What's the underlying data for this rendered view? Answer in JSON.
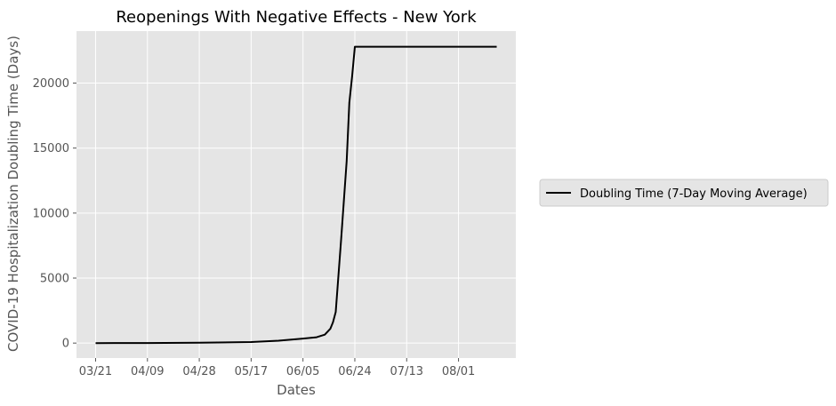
{
  "chart_data": {
    "type": "line",
    "title": "Reopenings With Negative Effects - New York",
    "xlabel": "Dates",
    "ylabel": "COVID-19 Hospitalization Doubling Time (Days)",
    "x_tick_labels": [
      "03/21",
      "04/09",
      "04/28",
      "05/17",
      "06/05",
      "06/24",
      "07/13",
      "08/01"
    ],
    "y_ticks": [
      0,
      5000,
      10000,
      15000,
      20000
    ],
    "ylim": [
      -1150,
      24000
    ],
    "xlim": [
      "2020-03-14",
      "2020-08-22"
    ],
    "grid": true,
    "legend_position": "outside-right",
    "series": [
      {
        "name": "Doubling Time (7-Day Moving Average)",
        "color": "#000000",
        "points": [
          {
            "x": "2020-03-21",
            "y": 0
          },
          {
            "x": "2020-04-09",
            "y": 5
          },
          {
            "x": "2020-04-28",
            "y": 25
          },
          {
            "x": "2020-05-17",
            "y": 80
          },
          {
            "x": "2020-05-27",
            "y": 180
          },
          {
            "x": "2020-06-05",
            "y": 350
          },
          {
            "x": "2020-06-10",
            "y": 450
          },
          {
            "x": "2020-06-13",
            "y": 650
          },
          {
            "x": "2020-06-15",
            "y": 1100
          },
          {
            "x": "2020-06-16",
            "y": 1600
          },
          {
            "x": "2020-06-17",
            "y": 2400
          },
          {
            "x": "2020-06-19",
            "y": 8000
          },
          {
            "x": "2020-06-21",
            "y": 14000
          },
          {
            "x": "2020-06-22",
            "y": 18500
          },
          {
            "x": "2020-06-23",
            "y": 20500
          },
          {
            "x": "2020-06-24",
            "y": 22800
          },
          {
            "x": "2020-08-15",
            "y": 22800
          }
        ]
      }
    ]
  },
  "style": {
    "plot_background": "#e5e5e5",
    "grid_color": "#ffffff",
    "text_color": "#555555",
    "title_color": "#000000",
    "axis_label_color": "#555555",
    "legend_background": "#e5e5e5",
    "legend_border": "#cccccc"
  }
}
